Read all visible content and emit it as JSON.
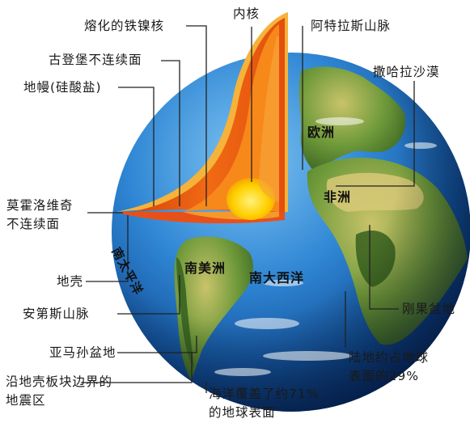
{
  "labels": {
    "molten_core": "熔化的铁镍核",
    "inner_core": "内核",
    "atlas": "阿特拉斯山脉",
    "gutenberg": "古登堡不连续面",
    "sahara": "撒哈拉沙漠",
    "mantle": "地幔(硅酸盐)",
    "europe": "欧洲",
    "africa": "非洲",
    "moho_line1": "莫霍洛维奇",
    "moho_line2": "不连续面",
    "pacific": "南太平洋",
    "south_america": "南美洲",
    "south_atlantic": "南大西洋",
    "crust": "地壳",
    "andes": "安第斯山脉",
    "congo_basin": "刚果盆地",
    "amazon_basin": "亚马孙盆地",
    "land_line1": "陆地约占地球",
    "land_line2": "表面的29%",
    "quake_line1": "沿地壳板块边界的",
    "quake_line2": "地震区",
    "ocean_line1": "海洋覆盖了约71%",
    "ocean_line2": "的地球表面"
  },
  "colors": {
    "ocean": "#1e6fc0",
    "land": "#4f8a2a",
    "crust": "#f3a530",
    "mantle": "#e85a12",
    "outer_core": "#f07a10",
    "inner_core": "#ffd200",
    "leader_line": "#222222"
  }
}
